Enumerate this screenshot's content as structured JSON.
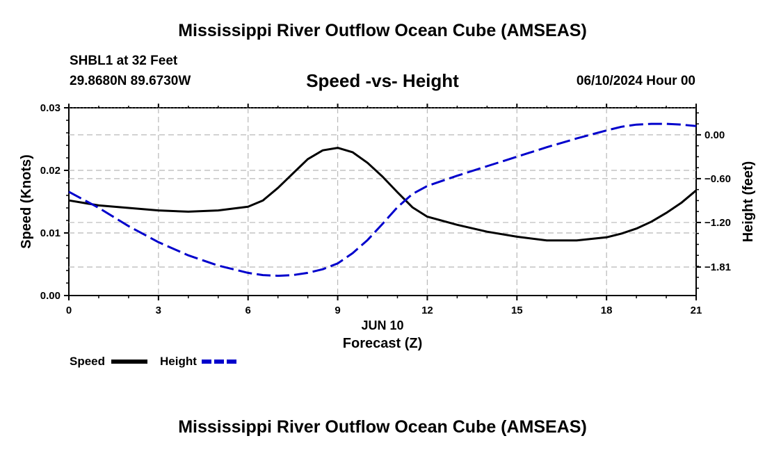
{
  "header": {
    "title": "Mississippi River Outflow Ocean Cube (AMSEAS)",
    "station": "SHBL1 at 32 Feet",
    "coords": "29.8680N  89.6730W",
    "subtitle": "Speed -vs- Height",
    "timestamp": "06/10/2024 Hour 00"
  },
  "footer": {
    "title": "Mississippi River Outflow Ocean Cube (AMSEAS)"
  },
  "chart_data": {
    "type": "line",
    "title": "Speed -vs- Height",
    "xlabel": "Forecast (Z)",
    "date_label": "JUN 10",
    "xlim": [
      0,
      21
    ],
    "xticks": [
      0,
      3,
      6,
      9,
      12,
      15,
      18,
      21
    ],
    "xtick_labels": [
      "0",
      "3",
      "6",
      "9",
      "12",
      "15",
      "18",
      "21"
    ],
    "y_left": {
      "label": "Speed (Knots)",
      "lim": [
        0,
        0.03
      ],
      "ticks": [
        0,
        0.01,
        0.02,
        0.03
      ],
      "tick_labels": [
        "0.00",
        "0.01",
        "0.02",
        "0.03"
      ]
    },
    "y_right": {
      "label": "Height (feet)",
      "lim": [
        -2.2,
        0.37
      ],
      "ticks": [
        0.0,
        -0.6,
        -1.2,
        -1.81
      ],
      "tick_labels": [
        "0.00",
        "−0.60",
        "−1.20",
        "−1.81"
      ]
    },
    "series": [
      {
        "name": "Speed",
        "axis": "left",
        "color": "#000000",
        "style": "solid",
        "x": [
          0,
          1,
          2,
          3,
          4,
          5,
          6,
          6.5,
          7,
          7.5,
          8,
          8.5,
          9,
          9.5,
          10,
          10.5,
          11,
          11.5,
          12,
          13,
          14,
          15,
          16,
          17,
          18,
          18.5,
          19,
          19.5,
          20,
          20.5,
          21
        ],
        "values": [
          0.0152,
          0.0144,
          0.014,
          0.0136,
          0.0134,
          0.0136,
          0.0142,
          0.0152,
          0.0172,
          0.0195,
          0.0218,
          0.0232,
          0.0236,
          0.0229,
          0.0212,
          0.019,
          0.0165,
          0.0141,
          0.0126,
          0.0113,
          0.0102,
          0.0094,
          0.0088,
          0.0088,
          0.0093,
          0.0099,
          0.0107,
          0.0118,
          0.0132,
          0.0148,
          0.0168
        ]
      },
      {
        "name": "Height",
        "axis": "right",
        "color": "#0000cc",
        "style": "dashed",
        "x": [
          0,
          1,
          2,
          3,
          4,
          5,
          6,
          6.5,
          7,
          7.5,
          8,
          8.5,
          9,
          9.5,
          10,
          10.5,
          11,
          11.5,
          12,
          13,
          14,
          15,
          16,
          17,
          18,
          18.5,
          19,
          19.5,
          20,
          20.5,
          21
        ],
        "values": [
          -0.78,
          -1.0,
          -1.25,
          -1.47,
          -1.65,
          -1.79,
          -1.89,
          -1.92,
          -1.93,
          -1.92,
          -1.89,
          -1.84,
          -1.76,
          -1.62,
          -1.44,
          -1.22,
          -0.99,
          -0.81,
          -0.7,
          -0.56,
          -0.43,
          -0.3,
          -0.17,
          -0.05,
          0.06,
          0.11,
          0.14,
          0.15,
          0.15,
          0.14,
          0.12
        ]
      }
    ],
    "legend": {
      "placement": "bottom-left",
      "items": [
        "Speed",
        "Height"
      ]
    }
  }
}
